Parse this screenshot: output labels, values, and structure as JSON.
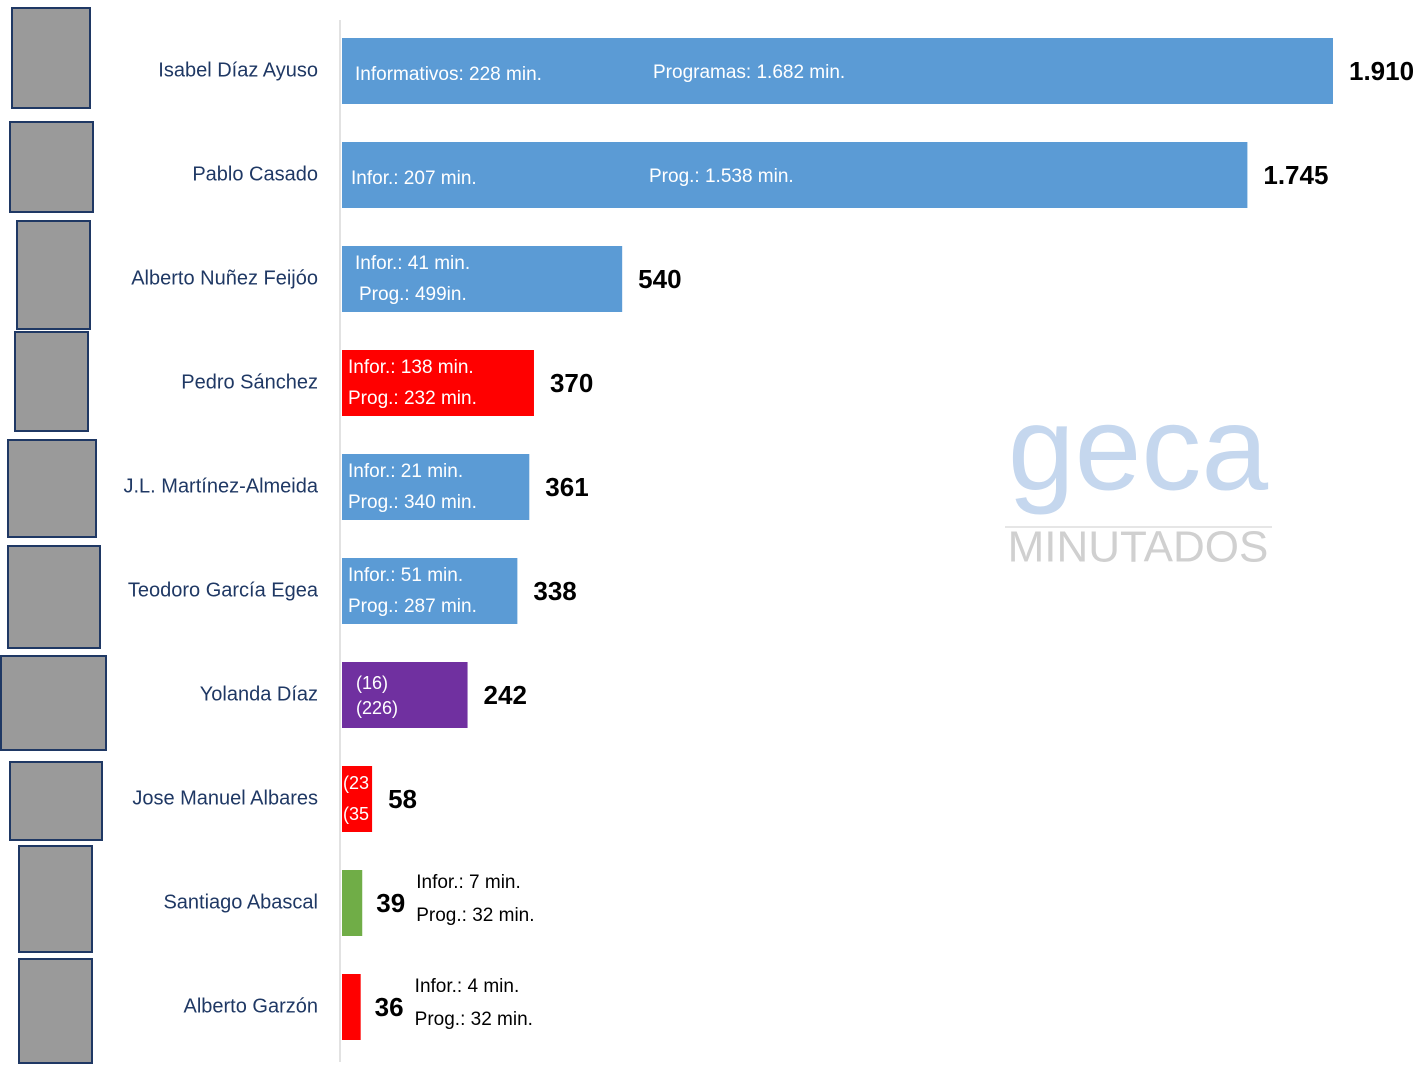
{
  "chart_data": {
    "type": "bar",
    "orientation": "horizontal",
    "categories": [
      "Isabel Díaz Ayuso",
      "Pablo Casado",
      "Alberto Nuñez Feijóo",
      "Pedro Sánchez",
      "J.L. Martínez-Almeida",
      "Teodoro García Egea",
      "Yolanda Díaz",
      "Jose Manuel Albares",
      "Santiago Abascal",
      "Alberto Garzón"
    ],
    "values": [
      1910,
      1745,
      540,
      370,
      361,
      338,
      242,
      58,
      39,
      36
    ],
    "value_labels": [
      "1.910",
      "1.745",
      "540",
      "370",
      "361",
      "338",
      "242",
      "58",
      "39",
      "36"
    ],
    "colors": [
      "#5b9bd5",
      "#5b9bd5",
      "#5b9bd5",
      "#ff0000",
      "#5b9bd5",
      "#5b9bd5",
      "#7030a0",
      "#ff0000",
      "#70ad47",
      "#ff0000"
    ],
    "segment_labels": [
      [
        "Informativos: 228 min.",
        "Programas: 1.682 min."
      ],
      [
        "Infor.: 207 min.",
        "Prog.: 1.538 min."
      ],
      [
        "Infor.: 41 min.",
        "Prog.: 499in."
      ],
      [
        "Infor.: 138 min.",
        "Prog.: 232 min."
      ],
      [
        "Infor.: 21 min.",
        "Prog.: 340 min."
      ],
      [
        "Infor.: 51 min.",
        "Prog.: 287 min."
      ],
      [
        "(16)",
        "(226)"
      ],
      [
        "(23",
        "(35"
      ],
      [
        "Infor.: 7 min.",
        "Prog.: 32 min."
      ],
      [
        "Infor.: 4 min.",
        "Prog.: 32 min."
      ]
    ],
    "watermark": [
      "geca",
      "MINUTADOS"
    ]
  }
}
